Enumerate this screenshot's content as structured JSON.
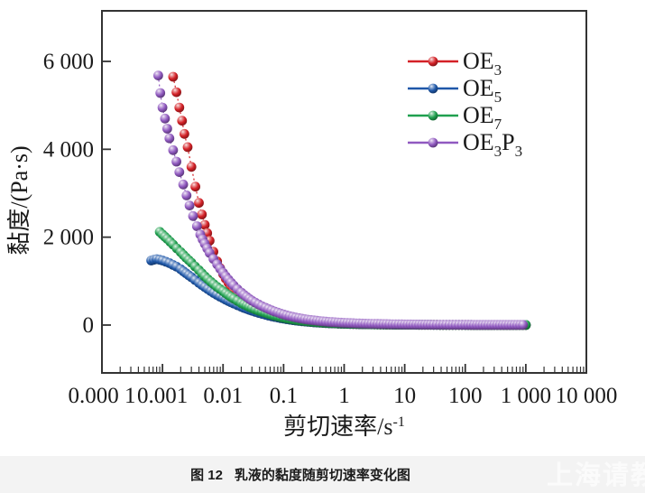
{
  "figure": {
    "caption_label": "图 12",
    "caption_title": "乳液的黏度随剪切速率变化图",
    "watermark": "上海请教"
  },
  "chart_data": {
    "type": "scatter",
    "title": "",
    "x_scale": "log",
    "y_scale": "linear",
    "xlim": [
      0.0001,
      10000
    ],
    "ylim": [
      -1000,
      7000
    ],
    "grid": false,
    "legend_position": "inside-top-right",
    "xlabel_parts": [
      {
        "t": "剪切速率/s"
      },
      {
        "t": "-1",
        "sup": true
      }
    ],
    "ylabel": "黏度/(Pa·s)",
    "x_ticks": [
      {
        "v": 0.0001,
        "label": "0.000 1"
      },
      {
        "v": 0.001,
        "label": "0.001"
      },
      {
        "v": 0.01,
        "label": "0.01"
      },
      {
        "v": 0.1,
        "label": "0.1"
      },
      {
        "v": 1,
        "label": "1"
      },
      {
        "v": 10,
        "label": "10"
      },
      {
        "v": 100,
        "label": "100"
      },
      {
        "v": 1000,
        "label": "1 000"
      },
      {
        "v": 10000,
        "label": "10 000"
      }
    ],
    "y_ticks": [
      {
        "v": 0,
        "label": "0"
      },
      {
        "v": 2000,
        "label": "2 000"
      },
      {
        "v": 4000,
        "label": "4 000"
      },
      {
        "v": 6000,
        "label": "6 000"
      }
    ],
    "series": [
      {
        "id": "OE3",
        "name_parts": [
          {
            "t": "OE"
          },
          {
            "t": "3",
            "sub": true
          }
        ],
        "color": "#d42127",
        "points": [
          [
            0.0015,
            5650
          ],
          [
            0.0017,
            5300
          ],
          [
            0.0019,
            4950
          ],
          [
            0.0021,
            4650
          ],
          [
            0.0023,
            4350
          ],
          [
            0.0026,
            4050
          ],
          [
            0.003,
            3600
          ],
          [
            0.0035,
            3150
          ],
          [
            0.004,
            2780
          ],
          [
            0.005,
            2280
          ],
          [
            0.006,
            1920
          ],
          [
            0.008,
            1450
          ],
          [
            0.01,
            1160
          ],
          [
            0.015,
            800
          ],
          [
            0.02,
            610
          ],
          [
            0.03,
            430
          ],
          [
            0.05,
            285
          ],
          [
            0.08,
            195
          ],
          [
            0.1,
            165
          ],
          [
            0.2,
            95
          ],
          [
            0.5,
            48
          ],
          [
            1,
            31
          ],
          [
            2,
            21
          ],
          [
            5,
            13
          ],
          [
            10,
            9
          ],
          [
            30,
            5.5
          ],
          [
            100,
            3.2
          ],
          [
            300,
            2.4
          ],
          [
            1000,
            2
          ]
        ]
      },
      {
        "id": "OE5",
        "name_parts": [
          {
            "t": "OE"
          },
          {
            "t": "5",
            "sub": true
          }
        ],
        "color": "#1f58a9",
        "points": [
          [
            0.00065,
            1470
          ],
          [
            0.0008,
            1500
          ],
          [
            0.001,
            1470
          ],
          [
            0.0013,
            1410
          ],
          [
            0.0017,
            1330
          ],
          [
            0.002,
            1270
          ],
          [
            0.003,
            1090
          ],
          [
            0.004,
            960
          ],
          [
            0.005,
            865
          ],
          [
            0.007,
            730
          ],
          [
            0.01,
            610
          ],
          [
            0.015,
            490
          ],
          [
            0.02,
            415
          ],
          [
            0.03,
            325
          ],
          [
            0.05,
            235
          ],
          [
            0.08,
            170
          ],
          [
            0.1,
            145
          ],
          [
            0.2,
            86
          ],
          [
            0.5,
            45
          ],
          [
            1,
            29
          ],
          [
            2,
            20
          ],
          [
            5,
            12
          ],
          [
            10,
            8.5
          ],
          [
            30,
            5
          ],
          [
            100,
            3
          ],
          [
            300,
            2.2
          ],
          [
            1000,
            1.9
          ]
        ]
      },
      {
        "id": "OE7",
        "name_parts": [
          {
            "t": "OE"
          },
          {
            "t": "7",
            "sub": true
          }
        ],
        "color": "#1fa04f",
        "points": [
          [
            0.0009,
            2120
          ],
          [
            0.001,
            2060
          ],
          [
            0.0012,
            1960
          ],
          [
            0.0015,
            1830
          ],
          [
            0.002,
            1660
          ],
          [
            0.003,
            1420
          ],
          [
            0.004,
            1250
          ],
          [
            0.005,
            1110
          ],
          [
            0.007,
            930
          ],
          [
            0.01,
            770
          ],
          [
            0.015,
            600
          ],
          [
            0.02,
            500
          ],
          [
            0.03,
            385
          ],
          [
            0.05,
            275
          ],
          [
            0.08,
            195
          ],
          [
            0.1,
            165
          ],
          [
            0.2,
            96
          ],
          [
            0.5,
            50
          ],
          [
            1,
            32
          ],
          [
            2,
            22
          ],
          [
            5,
            13
          ],
          [
            10,
            9
          ],
          [
            30,
            5.5
          ],
          [
            100,
            3.3
          ],
          [
            300,
            2.4
          ],
          [
            1000,
            2.1
          ]
        ]
      },
      {
        "id": "OE3P3",
        "name_parts": [
          {
            "t": "OE"
          },
          {
            "t": "3",
            "sub": true
          },
          {
            "t": "P"
          },
          {
            "t": "3",
            "sub": true
          }
        ],
        "color": "#9059c0",
        "points": [
          [
            0.00085,
            5680
          ],
          [
            0.00092,
            5280
          ],
          [
            0.001,
            4950
          ],
          [
            0.0011,
            4700
          ],
          [
            0.0012,
            4470
          ],
          [
            0.0013,
            4250
          ],
          [
            0.0015,
            3980
          ],
          [
            0.0017,
            3720
          ],
          [
            0.0019,
            3480
          ],
          [
            0.0022,
            3200
          ],
          [
            0.0025,
            2950
          ],
          [
            0.0028,
            2720
          ],
          [
            0.0032,
            2480
          ],
          [
            0.0037,
            2250
          ],
          [
            0.0042,
            2060
          ],
          [
            0.005,
            1850
          ],
          [
            0.006,
            1640
          ],
          [
            0.008,
            1380
          ],
          [
            0.01,
            1190
          ],
          [
            0.015,
            900
          ],
          [
            0.02,
            740
          ],
          [
            0.03,
            555
          ],
          [
            0.05,
            395
          ],
          [
            0.08,
            285
          ],
          [
            0.1,
            240
          ],
          [
            0.2,
            145
          ],
          [
            0.5,
            78
          ],
          [
            1,
            52
          ],
          [
            2,
            35
          ],
          [
            5,
            22
          ],
          [
            10,
            15
          ],
          [
            30,
            9
          ],
          [
            100,
            5.5
          ],
          [
            300,
            4.2
          ],
          [
            900,
            3.5
          ]
        ]
      }
    ]
  }
}
